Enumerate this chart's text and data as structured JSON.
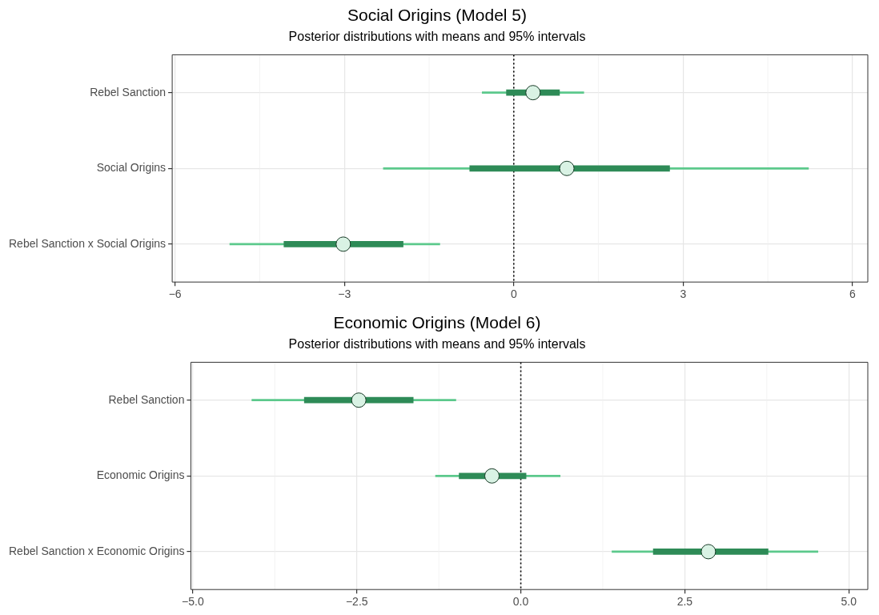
{
  "chart_data": [
    {
      "type": "bar",
      "orientation": "horizontal",
      "title": "Social Origins (Model 5)",
      "subtitle": "Posterior distributions with means and 95% intervals",
      "categories": [
        "Rebel Sanction",
        "Social Origins",
        "Rebel Sanction x Social Origins"
      ],
      "marker": "circle",
      "grid": true,
      "series": [
        {
          "color": "#5cc98c",
          "base": [
            -0.56,
            -2.31,
            -5.03
          ],
          "values": [
            1.8,
            7.53,
            3.72
          ]
        },
        {
          "color": "#2e8b57",
          "base": [
            -0.13,
            -0.78,
            -4.07
          ],
          "values": [
            0.94,
            3.54,
            2.11
          ]
        },
        {
          "type": "scatter",
          "color": "#d9f2e4",
          "values": [
            0.34,
            0.94,
            -3.02
          ]
        }
      ],
      "xlim": [
        -6.05,
        6.27
      ],
      "xticks": [
        {
          "value": -6,
          "label": "−6"
        },
        {
          "value": -3,
          "label": "−3"
        },
        0,
        3,
        6
      ],
      "ref_lines": [
        {
          "axis": "x",
          "value": 0,
          "color": "#000000",
          "line_style": "dotted"
        }
      ]
    },
    {
      "type": "bar",
      "orientation": "horizontal",
      "title": "Economic Origins (Model 6)",
      "subtitle": "Posterior distributions with means and 95% intervals",
      "categories": [
        "Rebel Sanction",
        "Economic Origins",
        "Rebel Sanction x Economic Origins"
      ],
      "marker": "circle",
      "grid": true,
      "series": [
        {
          "color": "#5cc98c",
          "base": [
            -4.1,
            -1.3,
            1.39
          ],
          "values": [
            3.11,
            1.9,
            3.14
          ]
        },
        {
          "color": "#2e8b57",
          "base": [
            -3.3,
            -0.94,
            2.02
          ],
          "values": [
            1.66,
            1.02,
            1.75
          ]
        },
        {
          "type": "scatter",
          "color": "#d9f2e4",
          "values": [
            -2.47,
            -0.44,
            2.86
          ]
        }
      ],
      "xlim": [
        -5.03,
        5.29
      ],
      "xticks": [
        {
          "value": -5,
          "label": "−5.0"
        },
        {
          "value": -2.5,
          "label": "−2.5"
        },
        {
          "value": 0,
          "label": "0.0"
        },
        {
          "value": 2.5,
          "label": "2.5"
        },
        {
          "value": 5,
          "label": "5.0"
        }
      ],
      "ref_lines": [
        {
          "axis": "x",
          "value": 0,
          "color": "#000000",
          "line_style": "dotted"
        }
      ]
    }
  ]
}
